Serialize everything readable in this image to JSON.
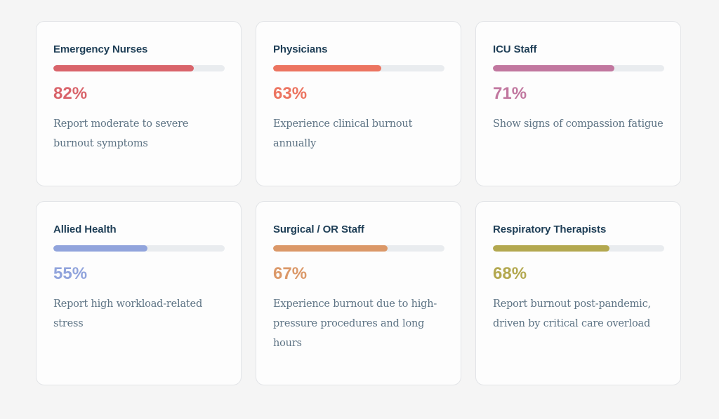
{
  "cards": [
    {
      "title": "Emergency Nurses",
      "percent_label": "82%",
      "progress": 0.82,
      "color": "#d9646b",
      "description": "Report moderate to severe burnout symptoms"
    },
    {
      "title": "Physicians",
      "percent_label": "63%",
      "progress": 0.63,
      "color": "#ec7460",
      "description": "Experience clinical burnout annually"
    },
    {
      "title": "ICU Staff",
      "percent_label": "71%",
      "progress": 0.71,
      "color": "#c1779f",
      "description": "Show signs of compassion fatigue"
    },
    {
      "title": "Allied Health",
      "percent_label": "55%",
      "progress": 0.55,
      "color": "#91a4dc",
      "description": "Report high workload-related stress"
    },
    {
      "title": "Surgical / OR Staff",
      "percent_label": "67%",
      "progress": 0.67,
      "color": "#db9868",
      "description": "Experience burnout due to high-pressure procedures and long hours"
    },
    {
      "title": "Respiratory Therapists",
      "percent_label": "68%",
      "progress": 0.68,
      "color": "#b3a84f",
      "description": "Report burnout post-pandemic, driven by critical care overload"
    }
  ]
}
